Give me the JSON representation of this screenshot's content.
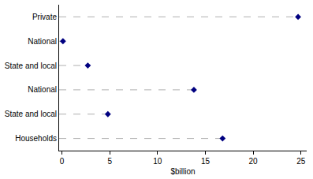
{
  "chart_data": {
    "type": "dot",
    "orientation": "horizontal",
    "categories": [
      "Private",
      "National",
      "State and local",
      "National",
      "State and local",
      "Households"
    ],
    "values": [
      24.7,
      0.1,
      2.7,
      13.8,
      4.8,
      16.8
    ],
    "color": "#000080",
    "marker": "diamond",
    "line_style": "dash",
    "xlabel": "$billion",
    "xlim": [
      -0.3,
      25.6
    ],
    "xticks": [
      0,
      5,
      10,
      15,
      20,
      25
    ],
    "grid": false
  }
}
